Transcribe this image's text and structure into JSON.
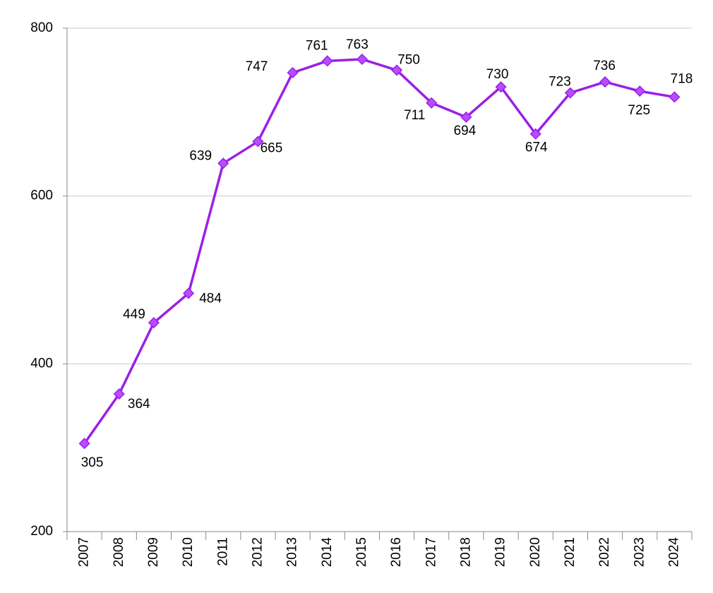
{
  "chart_data": {
    "type": "line",
    "categories": [
      "2007",
      "2008",
      "2009",
      "2010",
      "2011",
      "2012",
      "2013",
      "2014",
      "2015",
      "2016",
      "2017",
      "2018",
      "2019",
      "2020",
      "2021",
      "2022",
      "2023",
      "2024"
    ],
    "values": [
      305,
      364,
      449,
      484,
      639,
      665,
      747,
      761,
      763,
      750,
      711,
      694,
      730,
      674,
      723,
      736,
      725,
      718
    ],
    "color": "#9b1fe8",
    "ylim": [
      200,
      800
    ],
    "yticks": [
      200,
      400,
      600,
      800
    ],
    "grid": true
  }
}
